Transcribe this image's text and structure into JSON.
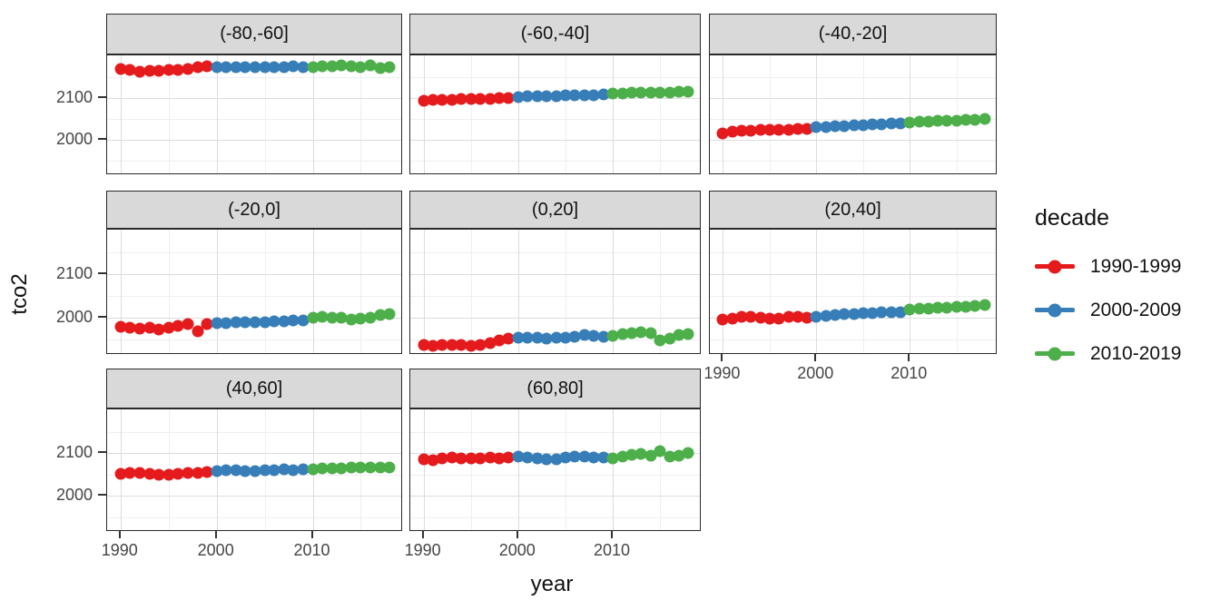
{
  "chart_data": {
    "type": "scatter",
    "title": "",
    "xlabel": "year",
    "ylabel": "tco2",
    "x_domain": [
      1988.6,
      2019.4
    ],
    "y_domain": [
      1915,
      2202
    ],
    "x_major_ticks": [
      1990,
      2000,
      2010
    ],
    "x_minor_ticks": [
      1995,
      2005,
      2015
    ],
    "y_major_ticks": [
      2000,
      2100
    ],
    "y_minor_ticks": [
      1950,
      2050,
      2150
    ],
    "grid": "on",
    "legend_position": "right",
    "legend": {
      "title": "decade",
      "entries": [
        {
          "label": "1990-1999",
          "color": "#e41a1c",
          "from": 1990,
          "to": 1999
        },
        {
          "label": "2000-2009",
          "color": "#377eb8",
          "from": 2000,
          "to": 2009
        },
        {
          "label": "2010-2019",
          "color": "#4daf4a",
          "from": 2010,
          "to": 2019
        }
      ]
    },
    "years": [
      1990,
      1991,
      1992,
      1993,
      1994,
      1995,
      1996,
      1997,
      1998,
      1999,
      2000,
      2001,
      2002,
      2003,
      2004,
      2005,
      2006,
      2007,
      2008,
      2009,
      2010,
      2011,
      2012,
      2013,
      2014,
      2015,
      2016,
      2017,
      2018
    ],
    "facets": [
      {
        "label": "(-80,-60]",
        "values": [
          2170,
          2168,
          2164,
          2166,
          2165,
          2167,
          2168,
          2169,
          2173,
          2175,
          2173,
          2174,
          2173,
          2174,
          2174,
          2173,
          2174,
          2174,
          2175,
          2174,
          2174,
          2175,
          2177,
          2178,
          2176,
          2173,
          2178,
          2171,
          2174
        ]
      },
      {
        "label": "(-60,-40]",
        "values": [
          2094,
          2095,
          2096,
          2096,
          2097,
          2097,
          2098,
          2098,
          2099,
          2100,
          2103,
          2104,
          2104,
          2105,
          2105,
          2106,
          2106,
          2107,
          2107,
          2108,
          2110,
          2111,
          2112,
          2113,
          2113,
          2114,
          2114,
          2115,
          2116
        ]
      },
      {
        "label": "(-40,-20]",
        "values": [
          2016,
          2019,
          2021,
          2022,
          2023,
          2023,
          2024,
          2024,
          2025,
          2025,
          2030,
          2031,
          2032,
          2033,
          2034,
          2035,
          2036,
          2037,
          2038,
          2039,
          2042,
          2043,
          2044,
          2045,
          2045,
          2046,
          2047,
          2048,
          2049
        ]
      },
      {
        "label": "(-20,0]",
        "values": [
          1979,
          1977,
          1975,
          1977,
          1974,
          1978,
          1981,
          1986,
          1970,
          1985,
          1987,
          1988,
          1989,
          1990,
          1990,
          1991,
          1992,
          1993,
          1994,
          1995,
          2000,
          2002,
          2000,
          2001,
          1997,
          1999,
          2000,
          2006,
          2008
        ]
      },
      {
        "label": "(0,20]",
        "values": [
          1937,
          1936,
          1938,
          1939,
          1938,
          1936,
          1939,
          1943,
          1949,
          1953,
          1954,
          1955,
          1954,
          1953,
          1954,
          1955,
          1956,
          1961,
          1959,
          1956,
          1959,
          1963,
          1966,
          1968,
          1965,
          1948,
          1953,
          1960,
          1963
        ]
      },
      {
        "label": "(20,40]",
        "values": [
          1996,
          1999,
          2002,
          2003,
          2001,
          1999,
          1998,
          2002,
          2002,
          2001,
          2003,
          2004,
          2006,
          2008,
          2009,
          2010,
          2011,
          2012,
          2012,
          2013,
          2020,
          2021,
          2022,
          2023,
          2024,
          2025,
          2026,
          2028,
          2030
        ]
      },
      {
        "label": "(40,60]",
        "values": [
          2051,
          2053,
          2054,
          2052,
          2050,
          2049,
          2052,
          2053,
          2054,
          2055,
          2058,
          2059,
          2059,
          2058,
          2058,
          2059,
          2060,
          2061,
          2060,
          2061,
          2062,
          2063,
          2064,
          2064,
          2065,
          2066,
          2066,
          2067,
          2067
        ]
      },
      {
        "label": "(60,80]",
        "values": [
          2086,
          2084,
          2088,
          2089,
          2088,
          2087,
          2088,
          2089,
          2088,
          2090,
          2091,
          2089,
          2087,
          2085,
          2086,
          2090,
          2092,
          2091,
          2090,
          2089,
          2088,
          2092,
          2095,
          2097,
          2094,
          2104,
          2091,
          2094,
          2099
        ]
      }
    ]
  }
}
